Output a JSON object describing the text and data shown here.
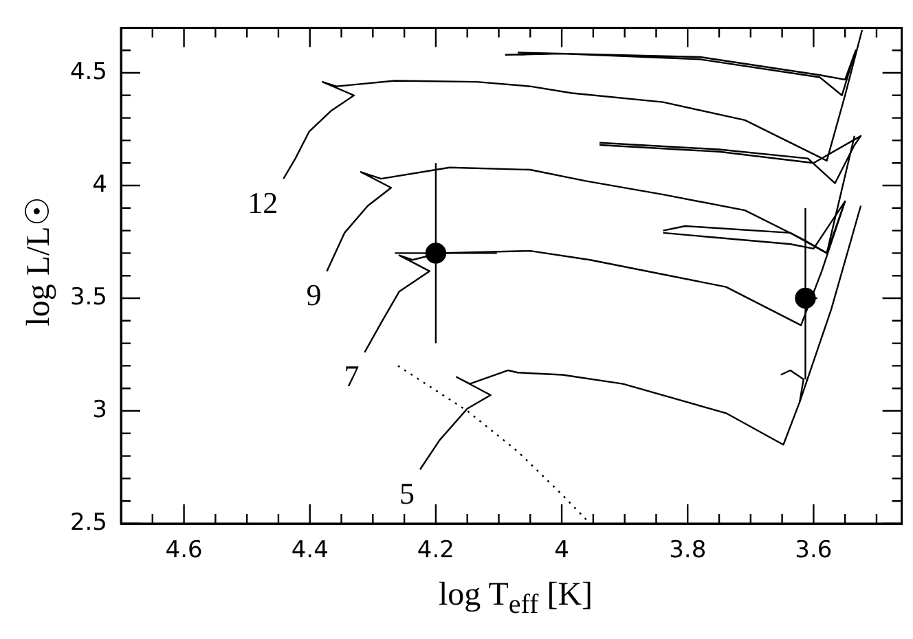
{
  "chart_data": {
    "type": "line",
    "xlabel": "log T$_{eff}$ [K]",
    "ylabel": "log L/L☉",
    "xlim": [
      4.7,
      3.46
    ],
    "ylim": [
      2.5,
      4.7
    ],
    "xticks": [
      {
        "value": 3.5,
        "label": null
      },
      {
        "value": 3.55,
        "label": null
      },
      3.6,
      {
        "value": 3.65,
        "label": null
      },
      {
        "value": 3.7,
        "label": null
      },
      {
        "value": 3.75,
        "label": null
      },
      3.8,
      {
        "value": 3.85,
        "label": null
      },
      {
        "value": 3.9,
        "label": null
      },
      {
        "value": 3.95,
        "label": null
      },
      4,
      {
        "value": 4.05,
        "label": null
      },
      {
        "value": 4.1,
        "label": null
      },
      {
        "value": 4.15,
        "label": null
      },
      4.2,
      {
        "value": 4.25,
        "label": null
      },
      {
        "value": 4.3,
        "label": null
      },
      {
        "value": 4.35,
        "label": null
      },
      4.4,
      {
        "value": 4.45,
        "label": null
      },
      {
        "value": 4.5,
        "label": null
      },
      {
        "value": 4.55,
        "label": null
      },
      4.6,
      {
        "value": 4.65,
        "label": null
      }
    ],
    "yticks": [
      2.5,
      {
        "value": 2.6,
        "label": null
      },
      {
        "value": 2.7,
        "label": null
      },
      {
        "value": 2.8,
        "label": null
      },
      {
        "value": 2.9,
        "label": null
      },
      3,
      {
        "value": 3.1,
        "label": null
      },
      {
        "value": 3.2,
        "label": null
      },
      {
        "value": 3.3,
        "label": null
      },
      {
        "value": 3.4,
        "label": null
      },
      3.5,
      {
        "value": 3.6,
        "label": null
      },
      {
        "value": 3.7,
        "label": null
      },
      {
        "value": 3.8,
        "label": null
      },
      {
        "value": 3.9,
        "label": null
      },
      4,
      {
        "value": 4.1,
        "label": null
      },
      {
        "value": 4.2,
        "label": null
      },
      {
        "value": 4.3,
        "label": null
      },
      {
        "value": 4.4,
        "label": null
      },
      4.5,
      {
        "value": 4.6,
        "label": null
      }
    ],
    "grid": false,
    "legend": false,
    "marker": "none",
    "line_style": "solid",
    "annotations": [
      {
        "text": "12",
        "x": 4.442,
        "y": 4.03
      },
      {
        "text": "9",
        "x": 4.373,
        "y": 3.62
      },
      {
        "text": "7",
        "x": 4.313,
        "y": 3.26
      },
      {
        "text": "5",
        "x": 4.225,
        "y": 2.74
      }
    ],
    "series": [
      {
        "color": "#000000",
        "x": [
          4.442,
          4.423,
          4.401,
          4.367,
          4.33,
          4.38,
          4.358,
          4.265,
          4.135,
          4.05,
          3.984,
          3.839,
          3.709,
          3.579,
          3.55,
          3.523
        ],
        "values": [
          4.03,
          4.12,
          4.24,
          4.33,
          4.4,
          4.46,
          4.44,
          4.465,
          4.46,
          4.44,
          4.41,
          4.37,
          4.29,
          4.11,
          4.4,
          4.69
        ]
      },
      {
        "color": "#000000",
        "x": [
          4.09,
          4.0,
          3.78,
          3.59,
          3.555,
          3.533,
          3.55,
          3.59,
          3.78,
          4.07
        ],
        "values": [
          4.58,
          4.585,
          4.56,
          4.48,
          4.4,
          4.6,
          4.47,
          4.49,
          4.57,
          4.59
        ]
      },
      {
        "color": "#000000",
        "x": [
          4.373,
          4.345,
          4.308,
          4.271,
          4.319,
          4.287,
          4.178,
          4.05,
          3.962,
          3.839,
          3.709,
          3.616,
          3.579,
          3.535
        ],
        "values": [
          3.62,
          3.79,
          3.91,
          3.99,
          4.06,
          4.03,
          4.08,
          4.07,
          4.02,
          3.96,
          3.89,
          3.76,
          3.7,
          4.22
        ]
      },
      {
        "color": "#000000",
        "x": [
          3.94,
          3.75,
          3.609,
          3.566,
          3.535,
          3.525,
          3.6,
          3.75,
          3.94
        ],
        "values": [
          4.19,
          4.16,
          4.12,
          4.01,
          4.18,
          4.22,
          4.1,
          4.15,
          4.18
        ]
      },
      {
        "color": "#000000",
        "x": [
          4.313,
          4.287,
          4.258,
          4.21,
          4.258,
          4.237,
          4.194,
          4.05,
          3.955,
          3.739,
          3.62,
          3.587,
          3.55
        ],
        "values": [
          3.26,
          3.39,
          3.53,
          3.62,
          3.69,
          3.67,
          3.7,
          3.71,
          3.67,
          3.55,
          3.38,
          3.62,
          3.93
        ]
      },
      {
        "color": "#000000",
        "x": [
          3.839,
          3.804,
          3.637,
          3.579,
          3.55,
          3.6,
          3.637,
          3.839
        ],
        "values": [
          3.8,
          3.82,
          3.79,
          3.7,
          3.93,
          3.72,
          3.74,
          3.79
        ]
      },
      {
        "color": "#000000",
        "x": [
          4.225,
          4.194,
          4.15,
          4.113,
          4.167,
          4.146,
          4.085,
          4.07,
          3.999,
          3.903,
          3.739,
          3.648,
          3.622,
          3.572,
          3.525
        ],
        "values": [
          2.74,
          2.87,
          3.01,
          3.07,
          3.15,
          3.12,
          3.18,
          3.17,
          3.16,
          3.12,
          2.99,
          2.85,
          3.04,
          3.45,
          3.91
        ]
      },
      {
        "color": "#000000",
        "x": [
          3.652,
          3.637,
          3.616,
          3.622
        ],
        "values": [
          3.16,
          3.18,
          3.14,
          3.04
        ]
      },
      {
        "color": "#000000",
        "line_style": "dotted",
        "x": [
          4.26,
          4.15,
          4.07,
          4.0,
          3.955
        ],
        "values": [
          3.2,
          3.0,
          2.82,
          2.63,
          2.5
        ]
      },
      {
        "type": "scatter",
        "marker": "circle",
        "color": "#000000",
        "x": [
          4.2,
          3.613
        ],
        "values": [
          3.7,
          3.5
        ],
        "errors": [
          [
            3.3,
            4.1
          ],
          [
            3.14,
            3.9
          ]
        ],
        "xerrors": [
          [
            4.103,
            4.265
          ],
          [
            3.594,
            3.627
          ]
        ]
      }
    ]
  }
}
